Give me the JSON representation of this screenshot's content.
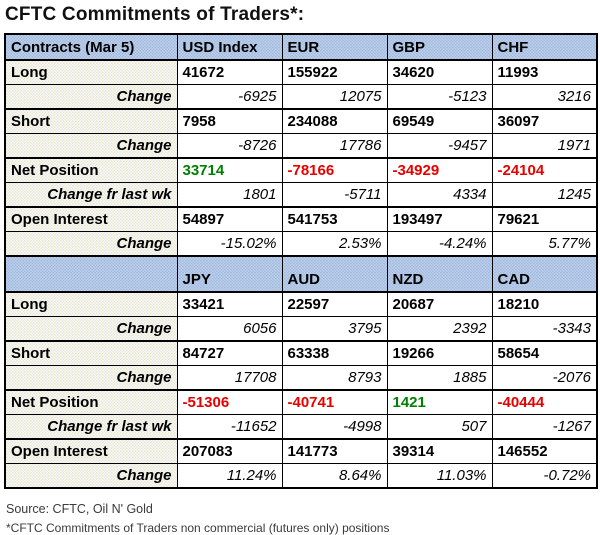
{
  "title": "CFTC Commitments of Traders*:",
  "colors": {
    "negative": "#e80000",
    "positive": "#008000",
    "header_bg": "#b5cbe8",
    "row_bg": "#f4f3ea"
  },
  "table": {
    "sections": [
      {
        "header": {
          "label": "Contracts (Mar 5)",
          "columns": [
            "USD Index",
            "EUR",
            "GBP",
            "CHF"
          ]
        },
        "rows": [
          {
            "label": "Long",
            "type": "main",
            "values": [
              "41672",
              "155922",
              "34620",
              "11993"
            ]
          },
          {
            "label": "Change",
            "type": "change",
            "values": [
              "-6925",
              "12075",
              "-5123",
              "3216"
            ]
          },
          {
            "label": "Short",
            "type": "main",
            "values": [
              "7958",
              "234088",
              "69549",
              "36097"
            ]
          },
          {
            "label": "Change",
            "type": "change",
            "values": [
              "-8726",
              "17786",
              "-9457",
              "1971"
            ]
          },
          {
            "label": "Net Position",
            "type": "net",
            "values": [
              "33714",
              "-78166",
              "-34929",
              "-24104"
            ]
          },
          {
            "label": "Change fr last wk",
            "type": "change",
            "values": [
              "1801",
              "-5711",
              "4334",
              "1245"
            ]
          },
          {
            "label": "Open Interest",
            "type": "main",
            "values": [
              "54897",
              "541753",
              "193497",
              "79621"
            ]
          },
          {
            "label": "Change",
            "type": "change",
            "values": [
              "-15.02%",
              "2.53%",
              "-4.24%",
              "5.77%"
            ]
          }
        ]
      },
      {
        "header": {
          "label": "",
          "columns": [
            "JPY",
            "AUD",
            "NZD",
            "CAD"
          ]
        },
        "rows": [
          {
            "label": "Long",
            "type": "main",
            "values": [
              "33421",
              "22597",
              "20687",
              "18210"
            ]
          },
          {
            "label": "Change",
            "type": "change",
            "values": [
              "6056",
              "3795",
              "2392",
              "-3343"
            ]
          },
          {
            "label": "Short",
            "type": "main",
            "values": [
              "84727",
              "63338",
              "19266",
              "58654"
            ]
          },
          {
            "label": "Change",
            "type": "change",
            "values": [
              "17708",
              "8793",
              "1885",
              "-2076"
            ]
          },
          {
            "label": "Net Position",
            "type": "net",
            "values": [
              "-51306",
              "-40741",
              "1421",
              "-40444"
            ]
          },
          {
            "label": "Change fr last wk",
            "type": "change",
            "values": [
              "-11652",
              "-4998",
              "507",
              "-1267"
            ]
          },
          {
            "label": "Open Interest",
            "type": "main",
            "values": [
              "207083",
              "141773",
              "39314",
              "146552"
            ]
          },
          {
            "label": "Change",
            "type": "change",
            "values": [
              "11.24%",
              "8.64%",
              "11.03%",
              "-0.72%"
            ]
          }
        ]
      }
    ]
  },
  "footer": {
    "source": "Source: CFTC, Oil N' Gold",
    "note": "*CFTC Commitments of Traders non commercial (futures only) positions"
  }
}
